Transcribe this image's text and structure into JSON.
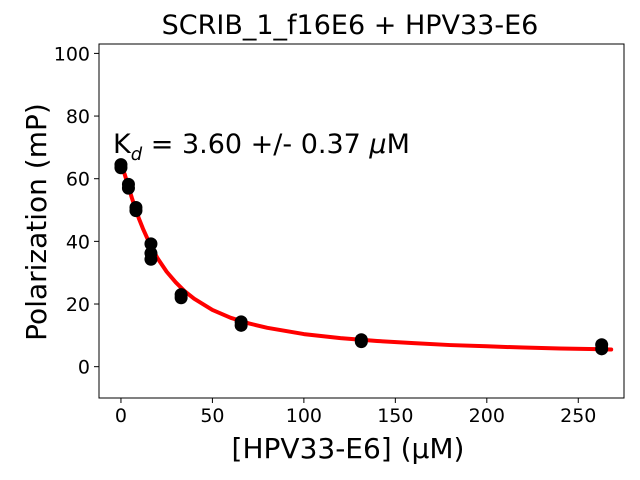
{
  "chart_data": {
    "type": "scatter",
    "title": "SCRIB_1_f16E6 + HPV33-E6",
    "xlabel": "[HPV33-E6] (μM)",
    "ylabel": "Polarization (mP)",
    "xlim": [
      -12,
      275
    ],
    "ylim": [
      -10,
      103
    ],
    "x_ticks": [
      "0",
      "50",
      "100",
      "150",
      "200",
      "250"
    ],
    "x_tick_values": [
      0,
      50,
      100,
      150,
      200,
      250
    ],
    "y_ticks": [
      "0",
      "20",
      "40",
      "60",
      "80",
      "100"
    ],
    "y_tick_values": [
      0,
      20,
      40,
      60,
      80,
      100
    ],
    "grid": false,
    "annotation": {
      "k_main": "K",
      "k_sub": "d",
      "text_mid": " = 3.60 +/- 0.37 ",
      "mu": "μ",
      "unit": "M"
    },
    "series": [
      {
        "type": "scatter",
        "color": "#000000",
        "points": [
          {
            "x": 0,
            "y": 63.5
          },
          {
            "x": 0,
            "y": 64.5
          },
          {
            "x": 4.1,
            "y": 57.0
          },
          {
            "x": 4.1,
            "y": 58.2
          },
          {
            "x": 8.2,
            "y": 49.8
          },
          {
            "x": 8.2,
            "y": 50.8
          },
          {
            "x": 16.4,
            "y": 34.3
          },
          {
            "x": 16.4,
            "y": 36.2
          },
          {
            "x": 16.4,
            "y": 39.2
          },
          {
            "x": 32.9,
            "y": 22.0
          },
          {
            "x": 32.9,
            "y": 23.0
          },
          {
            "x": 65.7,
            "y": 13.2
          },
          {
            "x": 65.7,
            "y": 14.3
          },
          {
            "x": 131.4,
            "y": 8.0
          },
          {
            "x": 131.4,
            "y": 8.6
          },
          {
            "x": 262.8,
            "y": 5.7
          },
          {
            "x": 262.8,
            "y": 7.0
          }
        ]
      },
      {
        "type": "line",
        "color": "#ff0000",
        "fit": {
          "model": "displacement",
          "x": [
            0,
            2,
            4,
            6,
            8,
            10,
            12,
            14,
            16,
            20,
            25,
            30,
            35,
            40,
            50,
            60,
            70,
            80,
            100,
            120,
            140,
            160,
            180,
            200,
            220,
            240,
            260,
            268
          ],
          "y": [
            64.0,
            61.5,
            57.6,
            53.8,
            50.3,
            47.0,
            44.1,
            41.5,
            38.9,
            34.6,
            30.3,
            26.9,
            24.0,
            21.7,
            18.1,
            15.6,
            13.8,
            12.4,
            10.4,
            9.1,
            8.2,
            7.5,
            6.9,
            6.5,
            6.1,
            5.8,
            5.6,
            5.5
          ]
        }
      }
    ]
  }
}
